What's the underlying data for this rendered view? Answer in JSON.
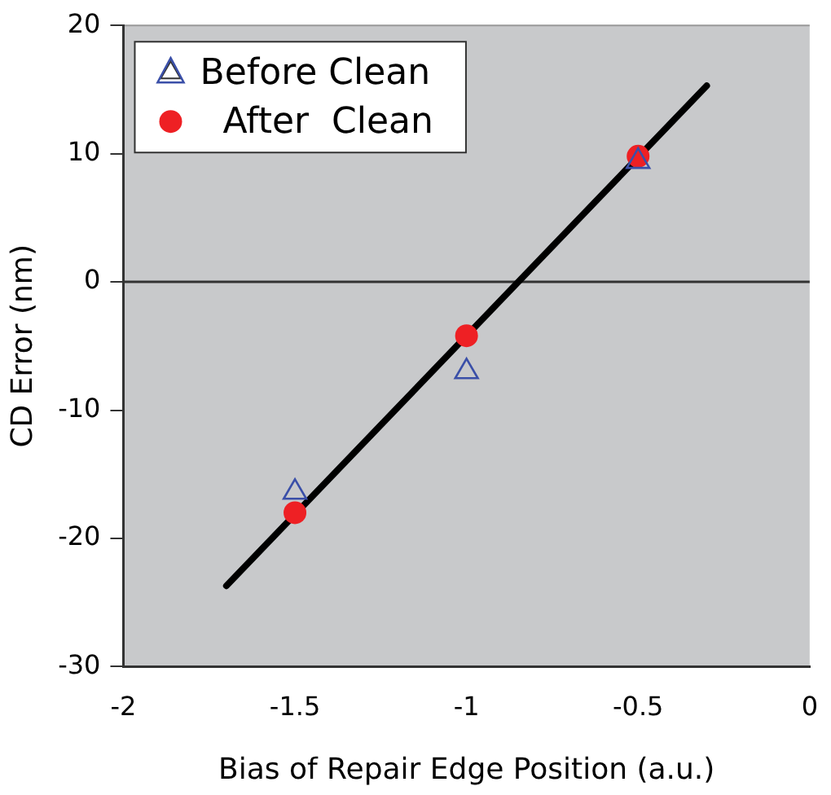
{
  "chart_data": {
    "type": "scatter",
    "xlabel": "Bias of Repair Edge Position (a.u.)",
    "ylabel": "CD Error (nm)",
    "xlim": [
      -2,
      0
    ],
    "xticks": [
      -2,
      -1.5,
      -1,
      -0.5,
      0
    ],
    "ylim": [
      -30,
      20
    ],
    "yticks": [
      -30,
      -20,
      -10,
      0,
      10,
      20
    ],
    "grid": false,
    "legend": "top left",
    "ref_lines": [
      {
        "axis": "y",
        "value": 0,
        "color": "#333333"
      }
    ],
    "series": [
      {
        "name": "Before Clean",
        "color": "#3a4fa8",
        "marker": "triangle",
        "x": [
          -1.5,
          -1,
          -0.5
        ],
        "values": [
          -16.4,
          -7.0,
          9.4
        ]
      },
      {
        "name": "  After  Clean",
        "color": "#ee2024",
        "marker": "circle",
        "x": [
          -1.5,
          -1,
          -0.5
        ],
        "values": [
          -18.0,
          -4.2,
          9.8
        ]
      },
      {
        "type": "line",
        "color": "#000000",
        "marker": "none",
        "x": [
          -1.7,
          -0.3
        ],
        "values": [
          -23.7,
          15.3
        ]
      }
    ]
  }
}
